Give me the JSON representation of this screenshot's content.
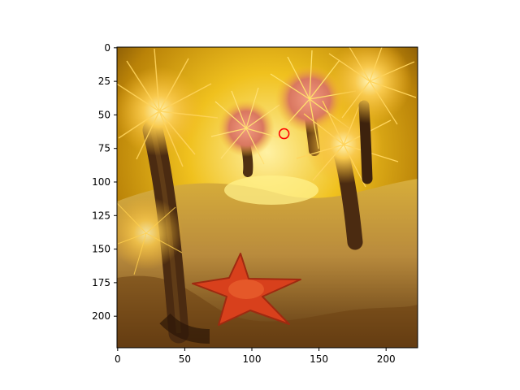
{
  "chart_data": {
    "type": "image",
    "title": "",
    "xlabel": "",
    "ylabel": "",
    "xlim": [
      -0.5,
      223.5
    ],
    "ylim": [
      223.5,
      -0.5
    ],
    "x_ticks": [
      0,
      50,
      100,
      150,
      200
    ],
    "y_ticks": [
      0,
      25,
      50,
      75,
      100,
      125,
      150,
      175,
      200
    ],
    "image_description": "underwater photo of yellow tube anemones on a sandy sea floor with a red starfish in the lower middle",
    "image_width": 224,
    "image_height": 224,
    "marker": {
      "type": "circle",
      "x": 124,
      "y": 64,
      "color": "#ff0000"
    },
    "colors": {
      "axis": "#000000",
      "background": "#ffffff",
      "starfish": "#d8401c",
      "anemone": "#f4b62a",
      "water": "#c98f10",
      "sand": "#b98b3d"
    }
  }
}
